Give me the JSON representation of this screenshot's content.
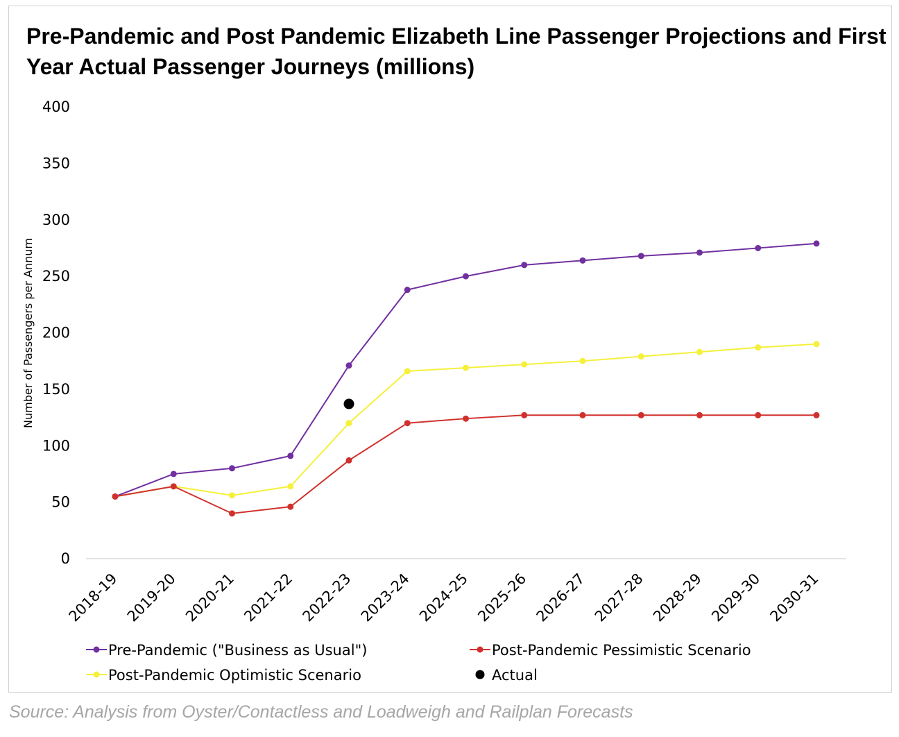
{
  "title": "Pre-Pandemic and Post Pandemic Elizabeth Line Passenger Projections and First Year Actual Passenger Journeys (millions)",
  "source": "Source: Analysis from Oyster/Contactless and Loadweigh and Railplan Forecasts",
  "chart_data": {
    "type": "line",
    "title": "Pre-Pandemic and Post Pandemic Elizabeth Line Passenger Projections and First Year Actual Passenger Journeys (millions)",
    "xlabel": "",
    "ylabel": "Number of Passengers per Annum",
    "ylim": [
      0,
      400
    ],
    "yticks": [
      0,
      50,
      100,
      150,
      200,
      250,
      300,
      350,
      400
    ],
    "ytick_labels": [
      "0",
      "50",
      "100",
      "150",
      "200",
      "250",
      "300",
      "350",
      "400"
    ],
    "categories": [
      "2018-19",
      "2019-20",
      "2020-21",
      "2021-22",
      "2022-23",
      "2023-24",
      "2024-25",
      "2025-26",
      "2026-27",
      "2027-28",
      "2028-29",
      "2029-30",
      "2030-31"
    ],
    "series": [
      {
        "name": "Pre-Pandemic (\"Business as Usual\")",
        "color": "#7030a0",
        "values": [
          55,
          75,
          80,
          91,
          171,
          238,
          250,
          260,
          264,
          268,
          271,
          275,
          279
        ]
      },
      {
        "name": "Post-Pandemic Pessimistic Scenario",
        "color": "#d0312d",
        "values": [
          55,
          64,
          40,
          46,
          87,
          120,
          124,
          127,
          127,
          127,
          127,
          127,
          127
        ]
      },
      {
        "name": "Post-Pandemic Optimistic Scenario",
        "color": "#f5f03a",
        "values": [
          55,
          64,
          56,
          64,
          120,
          166,
          169,
          172,
          175,
          179,
          183,
          187,
          190
        ]
      }
    ],
    "actual": {
      "name": "Actual",
      "color": "#000000",
      "category": "2022-23",
      "value": 137
    },
    "legend_position": "bottom",
    "grid": false
  }
}
